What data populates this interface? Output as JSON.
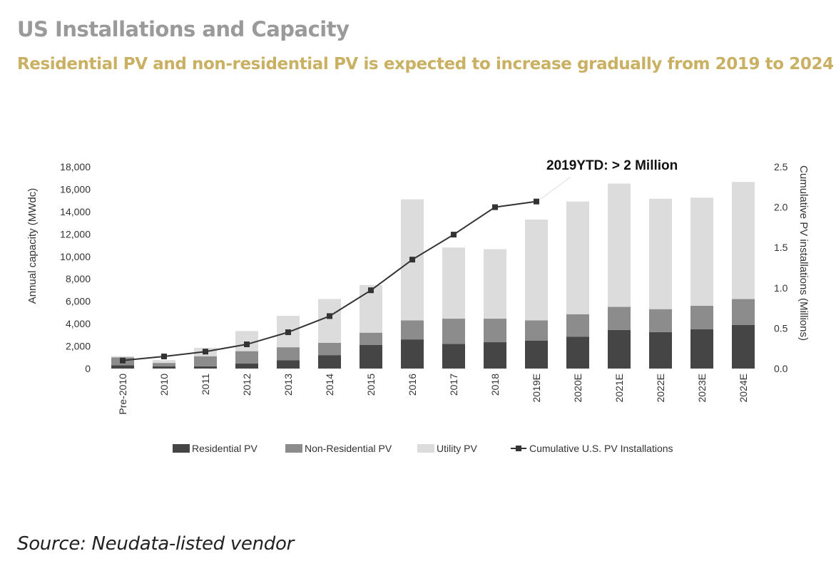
{
  "header": {
    "title": "US Installations and Capacity",
    "subtitle": "Residential PV and non-residential PV is expected to increase gradually from 2019 to 2024"
  },
  "footer": {
    "source": "Source: Neudata-listed vendor"
  },
  "chart_data": {
    "type": "bar",
    "stacked": true,
    "categories": [
      "Pre-2010",
      "2010",
      "2011",
      "2012",
      "2013",
      "2014",
      "2015",
      "2016",
      "2017",
      "2018",
      "2019E",
      "2020E",
      "2021E",
      "2022E",
      "2023E",
      "2024E"
    ],
    "series": [
      {
        "name": "Residential PV",
        "axis": "left",
        "color": "#454545",
        "values": [
          300,
          200,
          200,
          450,
          750,
          1200,
          2100,
          2600,
          2200,
          2350,
          2500,
          2850,
          3450,
          3250,
          3500,
          3900
        ]
      },
      {
        "name": "Non-Residential PV",
        "axis": "left",
        "color": "#8c8c8c",
        "values": [
          700,
          300,
          900,
          1100,
          1150,
          1100,
          1100,
          1700,
          2250,
          2100,
          1800,
          2000,
          2050,
          2050,
          2100,
          2300
        ]
      },
      {
        "name": "Utility PV",
        "axis": "left",
        "color": "#dcdcdc",
        "values": [
          100,
          250,
          750,
          1800,
          2800,
          3900,
          4250,
          10800,
          6350,
          6200,
          9000,
          10050,
          11000,
          9850,
          9650,
          10450
        ]
      },
      {
        "name": "Cumulative U.S. PV Installations",
        "type": "line",
        "axis": "right",
        "color": "#333333",
        "values": [
          0.1,
          0.15,
          0.21,
          0.3,
          0.45,
          0.65,
          0.97,
          1.35,
          1.66,
          2.0,
          2.07,
          null,
          null,
          null,
          null,
          null
        ]
      }
    ],
    "ylabel": "Annual capacity (MWdc)",
    "ylim": [
      0,
      18000
    ],
    "yticks": [
      "0",
      "2,000",
      "4,000",
      "6,000",
      "8,000",
      "10,000",
      "12,000",
      "14,000",
      "16,000",
      "18,000"
    ],
    "y2label": "Cumulative PV installations (Millions)",
    "y2lim": [
      0,
      2.5
    ],
    "y2ticks": [
      "0.0",
      "0.5",
      "1.0",
      "1.5",
      "2.0",
      "2.5"
    ],
    "annotation": "2019YTD: > 2 Million",
    "legend": "bottom",
    "grid": false
  }
}
